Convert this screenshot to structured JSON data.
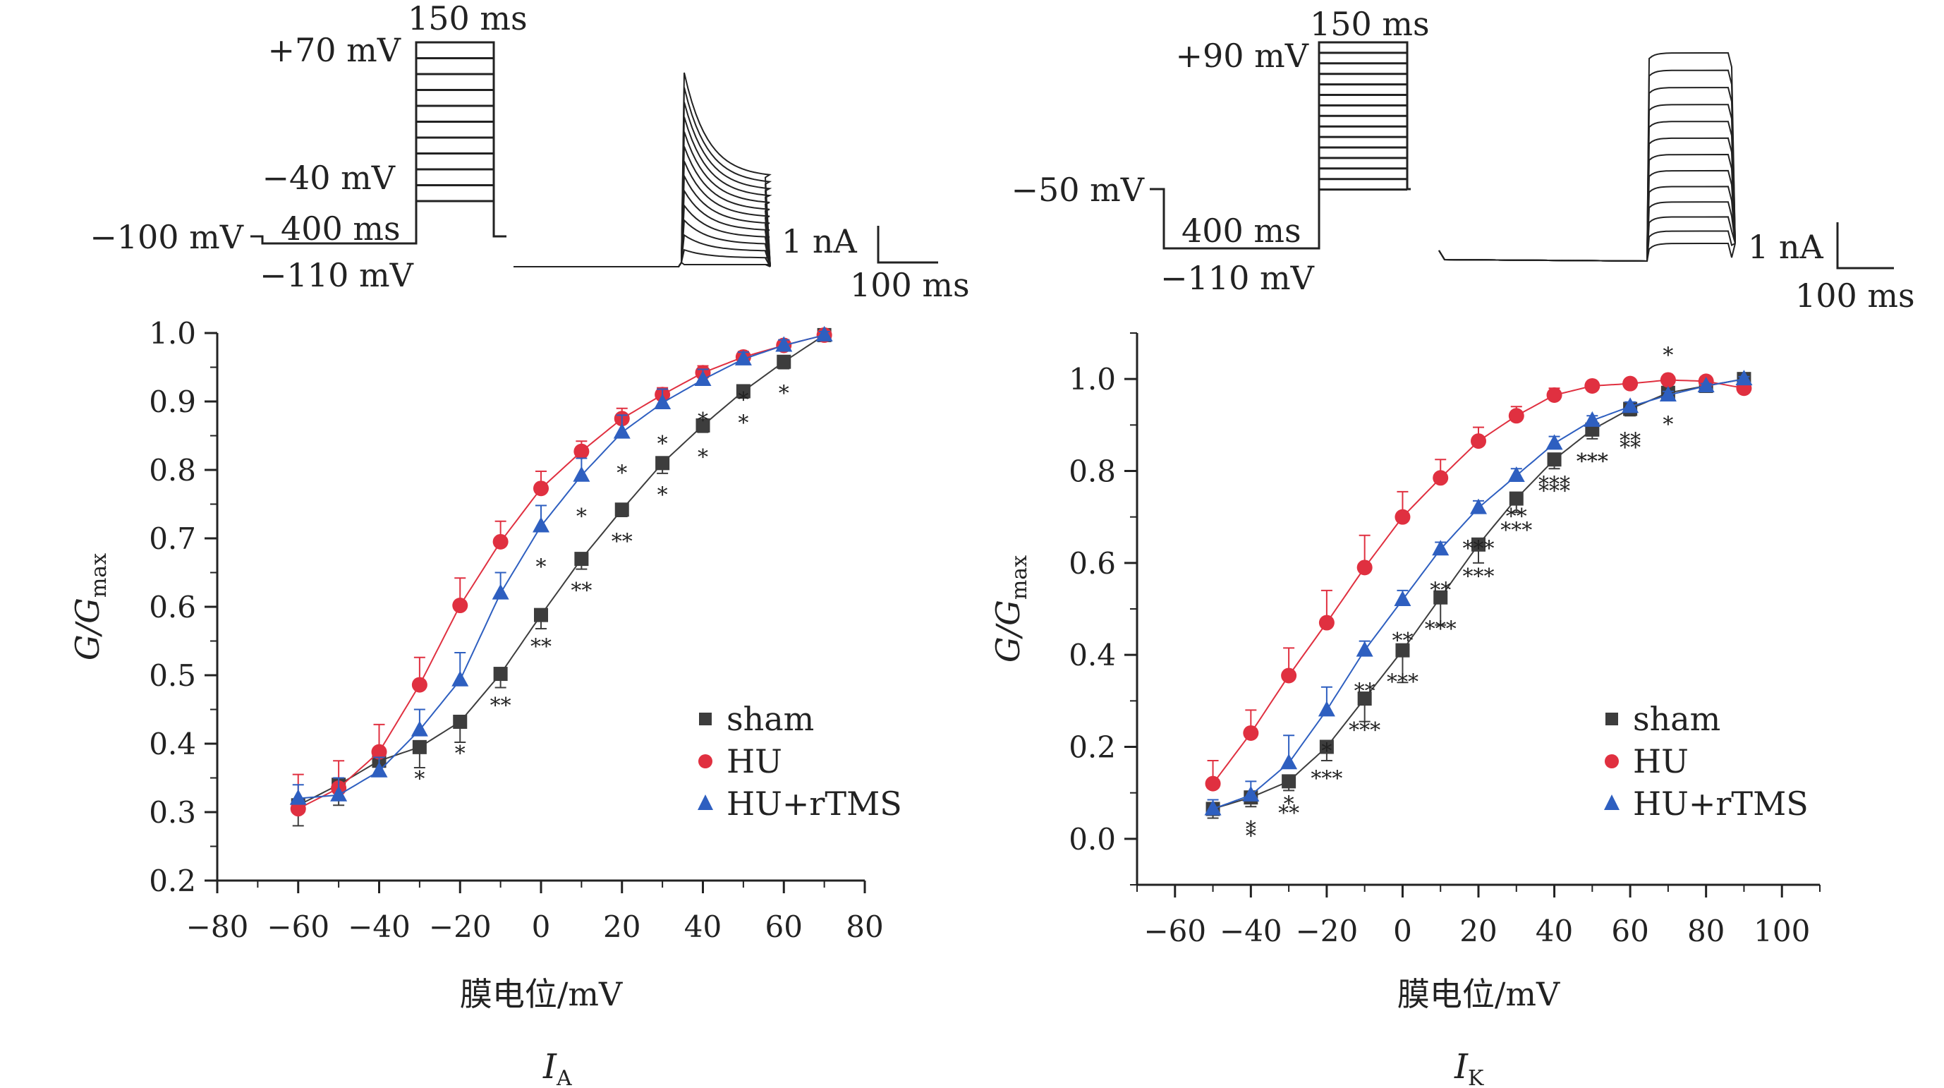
{
  "colors": {
    "sham": "#3d3d3d",
    "HU": "#e03040",
    "HU_rTMS": "#2e5fc0",
    "axis": "#222222"
  },
  "legend": {
    "sham": "sham",
    "HU": "HU",
    "HU_rTMS": "HU+rTMS"
  },
  "panels": [
    {
      "caption_main": "I",
      "caption_sub": "A",
      "protocol": {
        "hold": "−100 mV",
        "step_top": "+70 mV",
        "step_bottom": "−40 mV",
        "prepulse": "−110 mV",
        "prepulse_duration": "400 ms",
        "step_duration": "150 ms",
        "scale_current": "1 nA",
        "scale_time": "100 ms"
      }
    },
    {
      "caption_main": "I",
      "caption_sub": "K",
      "protocol": {
        "hold": "−50 mV",
        "step_top": "+90 mV",
        "prepulse": "−110 mV",
        "prepulse_duration": "400 ms",
        "step_duration": "150 ms",
        "scale_current": "1 nA",
        "scale_time": "100 ms"
      }
    }
  ],
  "chart_data": [
    {
      "type": "scatter",
      "title": "",
      "xlabel": "膜电位/mV",
      "ylabel": "G/Gmax",
      "xlim": [
        -80,
        80
      ],
      "ylim": [
        0.2,
        1.0
      ],
      "xticks": [
        -80,
        -60,
        -40,
        -20,
        0,
        20,
        40,
        60,
        80
      ],
      "yticks": [
        0.2,
        0.3,
        0.4,
        0.5,
        0.6,
        0.7,
        0.8,
        0.9,
        1.0
      ],
      "legend_position": "lower-right",
      "series": [
        {
          "name": "sham",
          "color": "#3d3d3d",
          "marker": "square",
          "x": [
            -60,
            -50,
            -40,
            -30,
            -20,
            -10,
            0,
            10,
            20,
            30,
            40,
            50,
            60,
            70
          ],
          "y": [
            0.31,
            0.34,
            0.375,
            0.395,
            0.432,
            0.502,
            0.588,
            0.67,
            0.742,
            0.81,
            0.865,
            0.915,
            0.958,
            0.997
          ],
          "err": [
            0.03,
            0.03,
            0.02,
            0.03,
            0.03,
            0.02,
            0.02,
            0.015,
            0.01,
            0.015,
            0.01,
            0.01,
            0.01,
            0.005
          ],
          "stars": [
            "",
            "",
            "",
            "*",
            "*",
            "**",
            "**",
            "**",
            "**",
            "*",
            "*",
            "*",
            "*",
            ""
          ]
        },
        {
          "name": "HU",
          "color": "#e03040",
          "marker": "circle",
          "x": [
            -60,
            -50,
            -40,
            -30,
            -20,
            -10,
            0,
            10,
            20,
            30,
            40,
            50,
            60,
            70
          ],
          "y": [
            0.305,
            0.335,
            0.388,
            0.486,
            0.602,
            0.695,
            0.773,
            0.827,
            0.875,
            0.91,
            0.942,
            0.965,
            0.982,
            0.997
          ],
          "err": [
            0.05,
            0.04,
            0.04,
            0.04,
            0.04,
            0.03,
            0.025,
            0.015,
            0.015,
            0.01,
            0.01,
            0.008,
            0.008,
            0.005
          ],
          "stars": [
            "",
            "",
            "",
            "",
            "",
            "",
            "",
            "",
            "",
            "",
            "",
            "",
            "",
            ""
          ]
        },
        {
          "name": "HU+rTMS",
          "color": "#2e5fc0",
          "marker": "triangle",
          "x": [
            -60,
            -50,
            -40,
            -30,
            -20,
            -10,
            0,
            10,
            20,
            30,
            40,
            50,
            60,
            70
          ],
          "y": [
            0.32,
            0.325,
            0.36,
            0.42,
            0.493,
            0.62,
            0.718,
            0.792,
            0.855,
            0.898,
            0.932,
            0.962,
            0.982,
            0.997
          ],
          "err": [
            0.02,
            0.025,
            0.02,
            0.03,
            0.04,
            0.03,
            0.03,
            0.025,
            0.025,
            0.02,
            0.015,
            0.01,
            0.008,
            0.005
          ],
          "stars": [
            "",
            "",
            "",
            "",
            "",
            "",
            "*",
            "*",
            "*",
            "*",
            "*",
            "*",
            "",
            ""
          ]
        }
      ]
    },
    {
      "type": "scatter",
      "title": "",
      "xlabel": "膜电位/mV",
      "ylabel": "G/Gmax",
      "xlim": [
        -70,
        110
      ],
      "ylim": [
        -0.1,
        1.1
      ],
      "xticks": [
        -60,
        -40,
        -20,
        0,
        20,
        40,
        60,
        80,
        100
      ],
      "yticks": [
        0.0,
        0.2,
        0.4,
        0.6,
        0.8,
        1.0
      ],
      "legend_position": "lower-right",
      "series": [
        {
          "name": "sham",
          "color": "#3d3d3d",
          "marker": "square",
          "x": [
            -50,
            -40,
            -30,
            -20,
            -10,
            0,
            10,
            20,
            30,
            40,
            50,
            60,
            70,
            80,
            90
          ],
          "y": [
            0.065,
            0.09,
            0.125,
            0.2,
            0.305,
            0.41,
            0.525,
            0.64,
            0.74,
            0.825,
            0.89,
            0.935,
            0.97,
            0.985,
            1.0
          ],
          "err": [
            0.02,
            0.02,
            0.02,
            0.03,
            0.05,
            0.07,
            0.06,
            0.04,
            0.03,
            0.02,
            0.02,
            0.015,
            0.01,
            0.01,
            0.005
          ],
          "stars": [
            "",
            "*",
            "**",
            "***",
            "***",
            "***",
            "***",
            "***",
            "***",
            "***",
            "***",
            "**",
            "*",
            "",
            ""
          ]
        },
        {
          "name": "HU",
          "color": "#e03040",
          "marker": "circle",
          "x": [
            -50,
            -40,
            -30,
            -20,
            -10,
            0,
            10,
            20,
            30,
            40,
            50,
            60,
            70,
            80,
            90
          ],
          "y": [
            0.12,
            0.23,
            0.355,
            0.47,
            0.59,
            0.7,
            0.785,
            0.865,
            0.92,
            0.965,
            0.985,
            0.99,
            0.998,
            0.995,
            0.98
          ],
          "err": [
            0.05,
            0.05,
            0.06,
            0.07,
            0.07,
            0.055,
            0.04,
            0.03,
            0.02,
            0.015,
            0.01,
            0.01,
            0.008,
            0.005,
            0.005
          ],
          "stars": [
            "",
            "",
            "",
            "",
            "",
            "",
            "",
            "",
            "",
            "",
            "",
            "",
            "*",
            "",
            ""
          ]
        },
        {
          "name": "HU+rTMS",
          "color": "#2e5fc0",
          "marker": "triangle",
          "x": [
            -50,
            -40,
            -30,
            -20,
            -10,
            0,
            10,
            20,
            30,
            40,
            50,
            60,
            70,
            80,
            90
          ],
          "y": [
            0.065,
            0.095,
            0.165,
            0.28,
            0.41,
            0.52,
            0.63,
            0.72,
            0.79,
            0.86,
            0.91,
            0.94,
            0.965,
            0.985,
            1.0
          ],
          "err": [
            0.02,
            0.03,
            0.06,
            0.05,
            0.02,
            0.02,
            0.015,
            0.015,
            0.015,
            0.015,
            0.01,
            0.01,
            0.008,
            0.005,
            0.005
          ],
          "stars": [
            "",
            "*",
            "*",
            "*",
            "**",
            "**",
            "**",
            "***",
            "**",
            "***",
            "***",
            "**",
            "",
            "",
            ""
          ]
        }
      ]
    }
  ]
}
